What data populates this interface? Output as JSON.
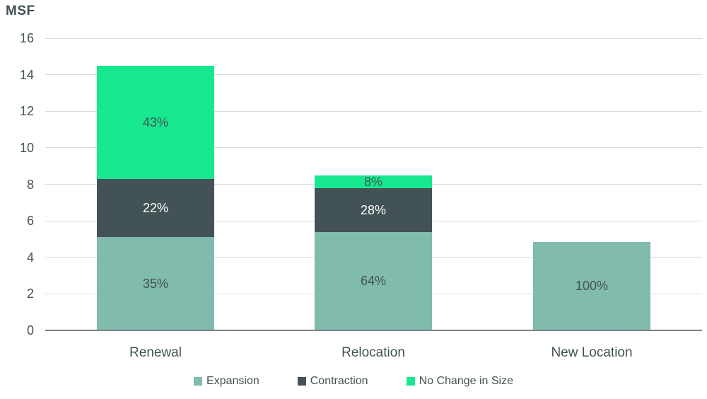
{
  "chart_data": {
    "type": "bar",
    "stacked": true,
    "title": "",
    "ylabel": "MSF",
    "xlabel": "",
    "ylim": [
      0,
      16
    ],
    "yticks": [
      0,
      2,
      4,
      6,
      8,
      10,
      12,
      14,
      16
    ],
    "grid": true,
    "legend_position": "bottom",
    "categories": [
      "Renewal",
      "Relocation",
      "New Location"
    ],
    "series": [
      {
        "name": "Expansion",
        "color": "#80BBAD",
        "label_color": "#435254",
        "values": [
          5.1,
          5.4,
          4.85
        ],
        "labels": [
          "35%",
          "64%",
          "100%"
        ]
      },
      {
        "name": "Contraction",
        "color": "#435254",
        "label_color": "#FFFFFF",
        "values": [
          3.2,
          2.4,
          0
        ],
        "labels": [
          "22%",
          "28%",
          ""
        ]
      },
      {
        "name": "No Change in Size",
        "color": "#17E88F",
        "label_color": "#435254",
        "values": [
          6.2,
          0.7,
          0
        ],
        "labels": [
          "43%",
          "8%",
          ""
        ]
      }
    ],
    "category_totals": [
      14.5,
      8.5,
      4.85
    ]
  },
  "colors": {
    "text": "#435254",
    "gridline": "#D7DADB",
    "axis_line": "#7A8486",
    "background": "#FFFFFF"
  }
}
